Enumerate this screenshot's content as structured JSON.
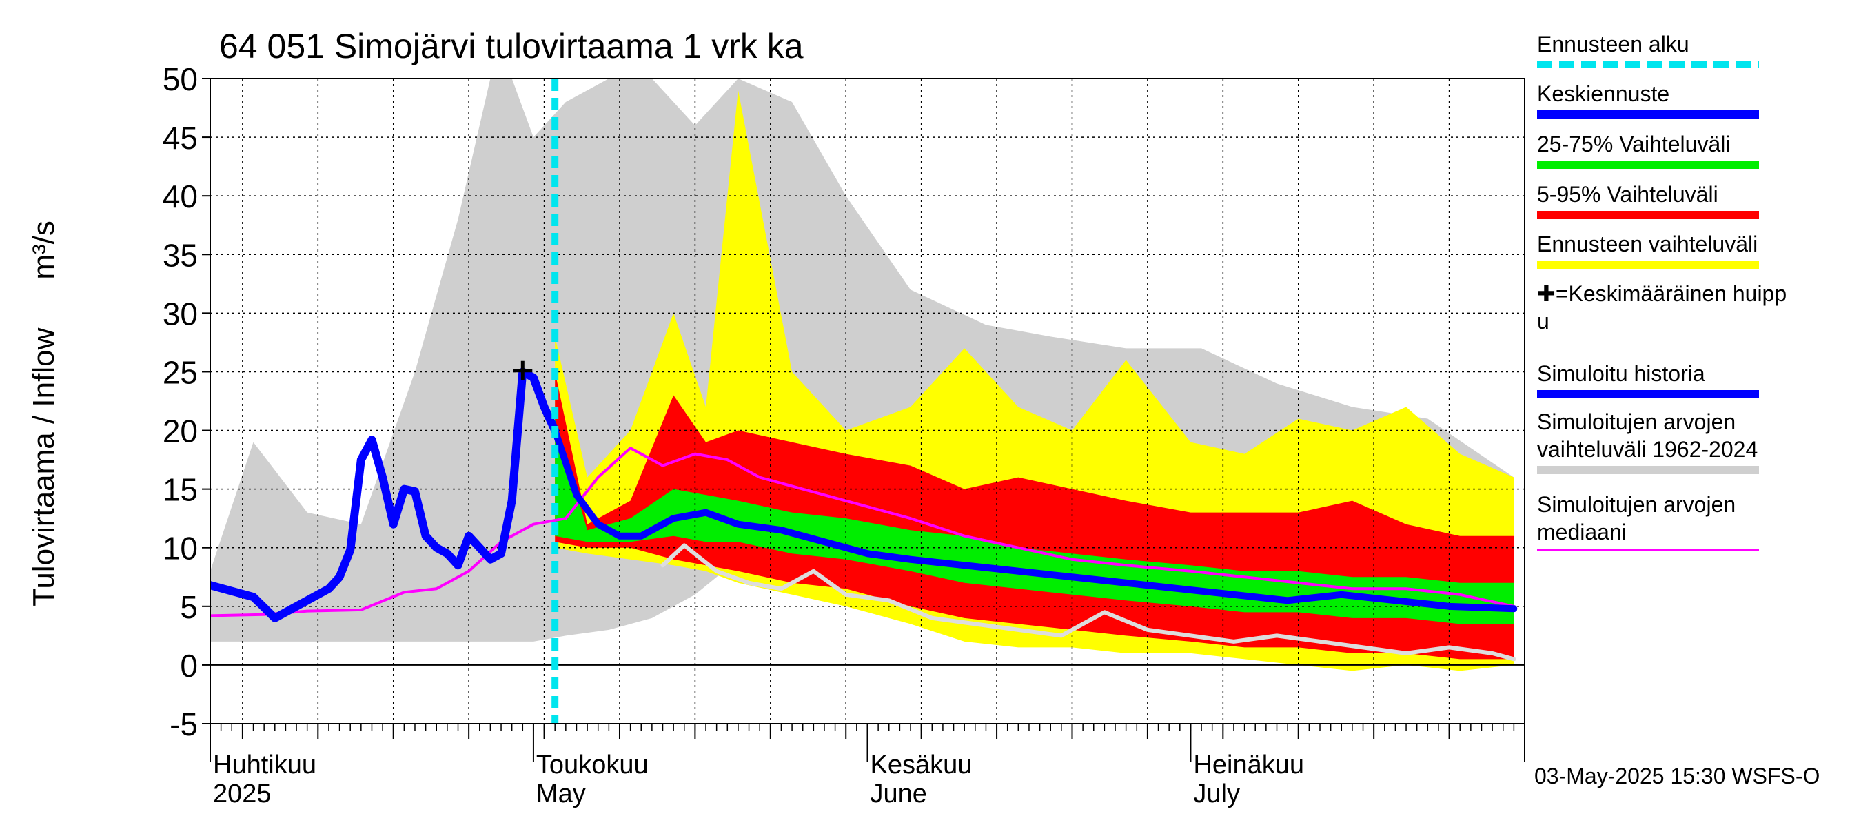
{
  "title": "64 051 Simojärvi tulovirtaama 1 vrk ka",
  "ylabel": "Tulovirtaama / Inflow",
  "yunit": "m³/s",
  "footer": "03-May-2025 15:30 WSFS-O",
  "colors": {
    "forecast_start": "#00e5ee",
    "mean_forecast": "#0000ff",
    "p25_75": "#00ee00",
    "p5_95": "#ff0000",
    "forecast_range": "#ffff00",
    "sim_range": "#cfcfcf",
    "median": "#ff00ff",
    "history": "#0000ff",
    "prev_year": "#dddddd"
  },
  "legend": [
    {
      "label": "Ennusteen alku",
      "color": "#00e5ee",
      "style": "dashed"
    },
    {
      "label": "Keskiennuste",
      "color": "#0000ff",
      "style": "solid"
    },
    {
      "label": "25-75% Vaihteluväli",
      "color": "#00ee00",
      "style": "solid"
    },
    {
      "label": "5-95% Vaihteluväli",
      "color": "#ff0000",
      "style": "solid"
    },
    {
      "label": "Ennusteen vaihteluväli",
      "color": "#ffff00",
      "style": "solid"
    },
    {
      "label": "✚=Keskimääräinen huipp\nu",
      "color": null,
      "style": "none"
    },
    {
      "label": "Simuloitu historia",
      "color": "#0000ff",
      "style": "solid"
    },
    {
      "label": "Simuloitujen arvojen\nvaihteluväli 1962-2024",
      "color": "#cfcfcf",
      "style": "solid"
    },
    {
      "label": "Simuloitujen arvojen\nmediaani",
      "color": "#ff00ff",
      "style": "thin"
    }
  ],
  "chart_data": {
    "type": "area",
    "x_axis": "date",
    "x_start": "2025-04-01",
    "x_end": "2025-08-01",
    "ylim": [
      -5,
      50
    ],
    "yticks": [
      -5,
      0,
      5,
      10,
      15,
      20,
      25,
      30,
      35,
      40,
      45,
      50
    ],
    "grid": true,
    "month_labels": [
      {
        "date": "2025-04-01",
        "line1": "Huhtikuu",
        "line2": "2025"
      },
      {
        "date": "2025-05-01",
        "line1": "Toukokuu",
        "line2": "May"
      },
      {
        "date": "2025-06-01",
        "line1": "Kesäkuu",
        "line2": "June"
      },
      {
        "date": "2025-07-01",
        "line1": "Heinäkuu",
        "line2": "July"
      }
    ],
    "forecast_start": "2025-05-03",
    "mean_peak": {
      "date": "2025-04-30",
      "value": 25.1
    },
    "series": [
      {
        "name": "Simulated range 1962-2024",
        "kind": "band",
        "x": [
          "2025-04-01",
          "2025-04-05",
          "2025-04-10",
          "2025-04-15",
          "2025-04-20",
          "2025-04-24",
          "2025-04-27",
          "2025-04-29",
          "2025-05-01",
          "2025-05-04",
          "2025-05-08",
          "2025-05-12",
          "2025-05-16",
          "2025-05-20",
          "2025-05-25",
          "2025-05-30",
          "2025-06-05",
          "2025-06-12",
          "2025-06-18",
          "2025-06-25",
          "2025-07-02",
          "2025-07-09",
          "2025-07-16",
          "2025-07-23",
          "2025-07-31"
        ],
        "low": [
          2.0,
          2.0,
          2.0,
          2.0,
          2.0,
          2.0,
          2.0,
          2.0,
          2.0,
          2.5,
          3.0,
          4.0,
          6.0,
          9.0,
          9.0,
          8.0,
          6.0,
          5.0,
          4.5,
          4.0,
          3.5,
          3.0,
          2.5,
          2.0,
          2.0
        ],
        "high": [
          8,
          19,
          13,
          12,
          25,
          38,
          50,
          50,
          45,
          48,
          50,
          50,
          46,
          50,
          48,
          40,
          32,
          29,
          28,
          27,
          27,
          24,
          22,
          21,
          16
        ]
      },
      {
        "name": "Forecast range",
        "kind": "band",
        "x": [
          "2025-05-03",
          "2025-05-06",
          "2025-05-10",
          "2025-05-14",
          "2025-05-17",
          "2025-05-20",
          "2025-05-25",
          "2025-05-30",
          "2025-06-05",
          "2025-06-10",
          "2025-06-15",
          "2025-06-20",
          "2025-06-25",
          "2025-07-01",
          "2025-07-06",
          "2025-07-11",
          "2025-07-16",
          "2025-07-21",
          "2025-07-26",
          "2025-07-31"
        ],
        "low": [
          10.0,
          9.5,
          9.0,
          8.5,
          8.0,
          7.0,
          6.0,
          5.0,
          3.5,
          2.0,
          1.5,
          1.5,
          1.0,
          1.0,
          0.5,
          0.0,
          -0.5,
          0.0,
          -0.5,
          0.0
        ],
        "high": [
          28,
          16,
          20,
          30,
          22,
          49,
          25,
          20,
          22,
          27,
          22,
          20,
          26,
          19,
          18,
          21,
          20,
          22,
          18,
          16
        ]
      },
      {
        "name": "5-95%",
        "kind": "band",
        "x": [
          "2025-05-03",
          "2025-05-06",
          "2025-05-10",
          "2025-05-14",
          "2025-05-17",
          "2025-05-20",
          "2025-05-25",
          "2025-05-30",
          "2025-06-05",
          "2025-06-10",
          "2025-06-15",
          "2025-06-20",
          "2025-06-25",
          "2025-07-01",
          "2025-07-06",
          "2025-07-11",
          "2025-07-16",
          "2025-07-21",
          "2025-07-26",
          "2025-07-31"
        ],
        "low": [
          10.5,
          10.0,
          10.0,
          9.0,
          8.5,
          8.0,
          7.0,
          6.5,
          5.0,
          4.0,
          3.5,
          3.0,
          2.5,
          2.0,
          1.5,
          1.5,
          1.0,
          1.0,
          0.5,
          0.5
        ],
        "high": [
          25,
          12,
          14,
          23,
          19,
          20,
          19,
          18,
          17,
          15,
          16,
          15,
          14,
          13,
          13,
          13,
          14,
          12,
          11,
          11
        ]
      },
      {
        "name": "25-75%",
        "kind": "band",
        "x": [
          "2025-05-03",
          "2025-05-06",
          "2025-05-10",
          "2025-05-14",
          "2025-05-17",
          "2025-05-20",
          "2025-05-25",
          "2025-05-30",
          "2025-06-05",
          "2025-06-10",
          "2025-06-15",
          "2025-06-20",
          "2025-06-25",
          "2025-07-01",
          "2025-07-06",
          "2025-07-11",
          "2025-07-16",
          "2025-07-21",
          "2025-07-26",
          "2025-07-31"
        ],
        "low": [
          11.0,
          10.5,
          10.5,
          11.0,
          10.5,
          10.5,
          9.5,
          9.0,
          8.0,
          7.0,
          6.5,
          6.0,
          5.5,
          5.0,
          4.5,
          4.5,
          4.0,
          4.0,
          3.5,
          3.5
        ],
        "high": [
          21,
          11.5,
          12.5,
          15.0,
          14.5,
          14.0,
          13.0,
          12.5,
          11.5,
          11.0,
          10.0,
          9.5,
          9.0,
          8.5,
          8.0,
          8.0,
          7.5,
          7.5,
          7.0,
          7.0
        ]
      },
      {
        "name": "Median",
        "kind": "line",
        "x": [
          "2025-04-01",
          "2025-04-06",
          "2025-04-10",
          "2025-04-15",
          "2025-04-19",
          "2025-04-22",
          "2025-04-25",
          "2025-04-28",
          "2025-05-01",
          "2025-05-04",
          "2025-05-07",
          "2025-05-10",
          "2025-05-13",
          "2025-05-16",
          "2025-05-19",
          "2025-05-22",
          "2025-05-26",
          "2025-05-30",
          "2025-06-05",
          "2025-06-10",
          "2025-06-15",
          "2025-06-20",
          "2025-06-25",
          "2025-07-01",
          "2025-07-06",
          "2025-07-11",
          "2025-07-16",
          "2025-07-21",
          "2025-07-26",
          "2025-07-31"
        ],
        "y": [
          4.2,
          4.3,
          4.6,
          4.7,
          6.2,
          6.5,
          8.0,
          10.5,
          12.0,
          12.5,
          16.0,
          18.5,
          17.0,
          18.0,
          17.5,
          16.0,
          15.0,
          14.0,
          12.5,
          11.0,
          10.0,
          9.0,
          8.5,
          8.0,
          7.5,
          7.0,
          6.5,
          6.5,
          6.0,
          5.0
        ]
      },
      {
        "name": "Previous year",
        "kind": "line",
        "x": [
          "2025-05-13",
          "2025-05-15",
          "2025-05-18",
          "2025-05-21",
          "2025-05-24",
          "2025-05-27",
          "2025-05-30",
          "2025-06-03",
          "2025-06-07",
          "2025-06-11",
          "2025-06-15",
          "2025-06-19",
          "2025-06-23",
          "2025-06-27",
          "2025-07-01",
          "2025-07-05",
          "2025-07-09",
          "2025-07-13",
          "2025-07-17",
          "2025-07-21",
          "2025-07-25",
          "2025-07-29",
          "2025-07-31"
        ],
        "y": [
          8.5,
          10.2,
          8.0,
          7.0,
          6.5,
          8.0,
          6.0,
          5.5,
          4.0,
          3.5,
          3.0,
          2.5,
          4.5,
          3.0,
          2.5,
          2.0,
          2.5,
          2.0,
          1.5,
          1.0,
          1.5,
          1.0,
          0.5
        ]
      },
      {
        "name": "History",
        "kind": "line",
        "x": [
          "2025-04-01",
          "2025-04-03",
          "2025-04-05",
          "2025-04-07",
          "2025-04-08",
          "2025-04-10",
          "2025-04-12",
          "2025-04-13",
          "2025-04-14",
          "2025-04-15",
          "2025-04-16",
          "2025-04-17",
          "2025-04-18",
          "2025-04-19",
          "2025-04-20",
          "2025-04-21",
          "2025-04-22",
          "2025-04-23",
          "2025-04-24",
          "2025-04-25",
          "2025-04-26",
          "2025-04-27",
          "2025-04-28",
          "2025-04-29",
          "2025-04-30",
          "2025-05-01",
          "2025-05-02",
          "2025-05-03"
        ],
        "y": [
          6.8,
          6.3,
          5.8,
          4.0,
          4.5,
          5.5,
          6.5,
          7.5,
          9.8,
          17.5,
          19.2,
          16.0,
          12.0,
          15.0,
          14.8,
          11.0,
          10.0,
          9.5,
          8.5,
          11.0,
          10.0,
          9.0,
          9.5,
          14.0,
          25.0,
          24.5,
          22.0,
          20.0
        ]
      },
      {
        "name": "Mean forecast",
        "kind": "line",
        "x": [
          "2025-05-03",
          "2025-05-05",
          "2025-05-07",
          "2025-05-09",
          "2025-05-11",
          "2025-05-14",
          "2025-05-17",
          "2025-05-20",
          "2025-05-24",
          "2025-05-28",
          "2025-06-01",
          "2025-06-05",
          "2025-06-10",
          "2025-06-15",
          "2025-06-20",
          "2025-06-25",
          "2025-06-30",
          "2025-07-05",
          "2025-07-10",
          "2025-07-15",
          "2025-07-20",
          "2025-07-25",
          "2025-07-31"
        ],
        "y": [
          20.0,
          14.5,
          12.0,
          11.0,
          11.0,
          12.5,
          13.0,
          12.0,
          11.5,
          10.5,
          9.5,
          9.0,
          8.5,
          8.0,
          7.5,
          7.0,
          6.5,
          6.0,
          5.5,
          6.0,
          5.5,
          5.0,
          4.8
        ]
      }
    ]
  }
}
